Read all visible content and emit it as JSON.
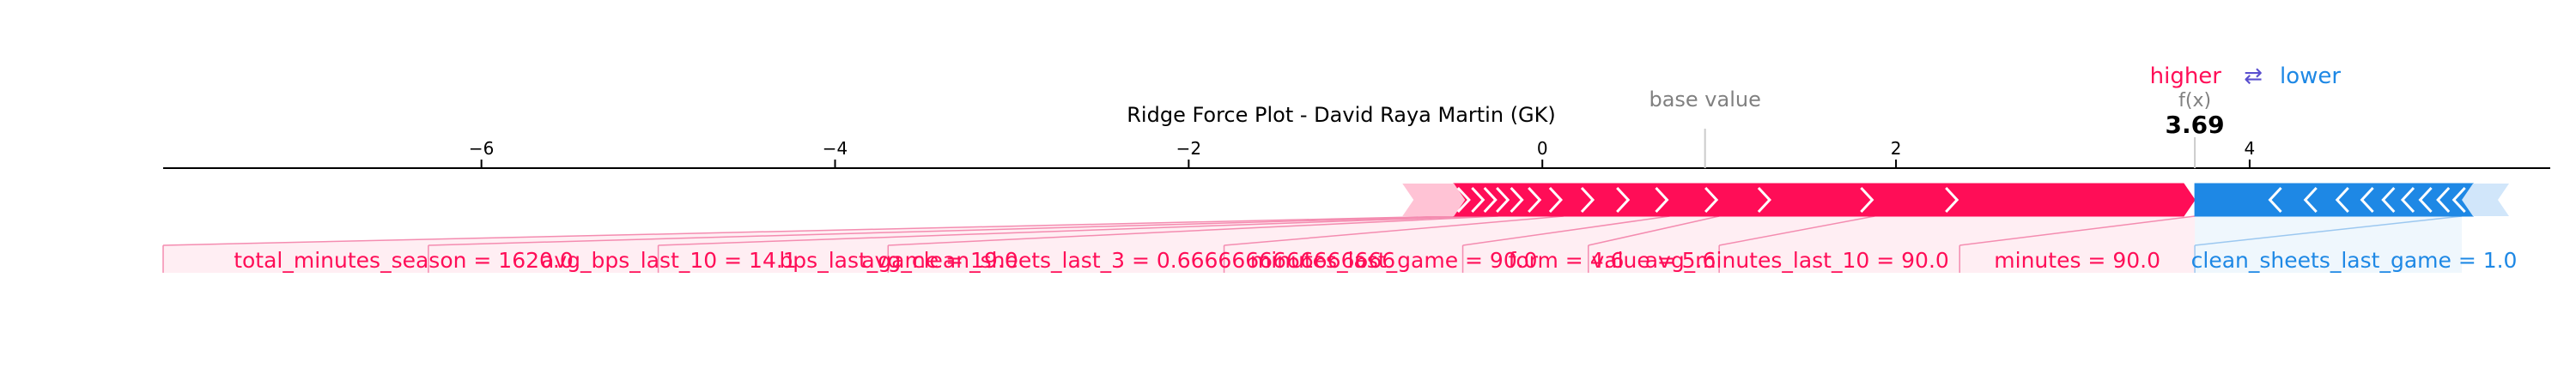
{
  "chart_data": {
    "type": "force",
    "title": "Ridge Force Plot - David Raya Martin (GK)",
    "xlim": [
      -7.8,
      5.7
    ],
    "x_ticks": [
      -6,
      -4,
      -2,
      0,
      2,
      4
    ],
    "x_tick_labels": [
      "−6",
      "−4",
      "−2",
      "0",
      "2",
      "4"
    ],
    "base_value": 0.92,
    "base_value_label": "base value",
    "output_value": 3.69,
    "output_value_text": "3.69",
    "output_label": "f(x)",
    "legend": {
      "higher_label": "higher",
      "arrows_label": "⇄",
      "lower_label": "lower"
    },
    "colors": {
      "positive": "#ff0d57",
      "negative": "#1e88e5",
      "positive_light": "#ffc3d5",
      "negative_light": "#d1e6fa",
      "axis": "#000000"
    },
    "positive_segments": [
      {
        "start": -0.5,
        "end": -0.4
      },
      {
        "start": -0.4,
        "end": -0.32
      },
      {
        "start": -0.32,
        "end": -0.25
      },
      {
        "start": -0.25,
        "end": -0.18
      },
      {
        "start": -0.18,
        "end": -0.1
      },
      {
        "start": -0.1,
        "end": 0.0
      },
      {
        "start": 0.0,
        "end": 0.12
      },
      {
        "start": 0.12,
        "end": 0.3
      },
      {
        "start": 0.3,
        "end": 0.5
      },
      {
        "start": 0.5,
        "end": 0.72
      },
      {
        "start": 0.72,
        "end": 1.0
      },
      {
        "start": 1.0,
        "end": 1.3
      },
      {
        "start": 1.3,
        "end": 1.88
      },
      {
        "start": 1.88,
        "end": 2.36
      },
      {
        "start": 2.36,
        "end": 3.69
      }
    ],
    "negative_segments": [
      {
        "start": 3.69,
        "end": 4.1
      },
      {
        "start": 4.1,
        "end": 4.3
      },
      {
        "start": 4.3,
        "end": 4.48
      },
      {
        "start": 4.48,
        "end": 4.62
      },
      {
        "start": 4.62,
        "end": 4.74
      },
      {
        "start": 4.74,
        "end": 4.85
      },
      {
        "start": 4.85,
        "end": 4.95
      },
      {
        "start": 4.95,
        "end": 5.05
      },
      {
        "start": 5.05,
        "end": 5.14
      },
      {
        "start": 5.14,
        "end": 5.2
      }
    ],
    "positive_labels": [
      {
        "text": "total_minutes_season = 1620.0",
        "seg_start": -7.8,
        "seg_end": -0.5
      },
      {
        "text": "avg_bps_last_10 = 14.1",
        "seg_start": -6.3,
        "seg_end": -0.4
      },
      {
        "text": "bps_last_game = 19.0",
        "seg_start": -5.0,
        "seg_end": -0.32
      },
      {
        "text": "avg_clean_sheets_last_3 = 0.6666666666666666",
        "seg_start": -3.7,
        "seg_end": -0.25
      },
      {
        "text": "minutes_last_game = 90.0",
        "seg_start": -1.8,
        "seg_end": 0.12
      },
      {
        "text": "form = 4.6",
        "seg_start": -0.45,
        "seg_end": 0.72
      },
      {
        "text": "value = 5.6",
        "seg_start": 0.26,
        "seg_end": 1.0
      },
      {
        "text": "avg_minutes_last_10 = 90.0",
        "seg_start": 1.0,
        "seg_end": 1.88
      },
      {
        "text": "minutes = 90.0",
        "seg_start": 2.36,
        "seg_end": 3.69
      }
    ],
    "negative_labels": [
      {
        "text": "clean_sheets_last_game = 1.0",
        "seg_start": 3.69,
        "seg_end": 5.2
      }
    ]
  }
}
